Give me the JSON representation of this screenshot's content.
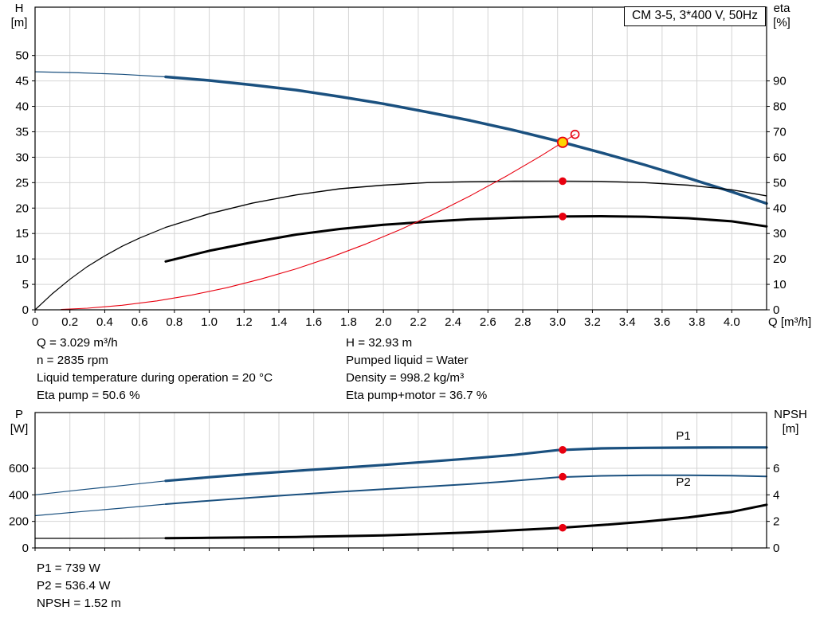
{
  "title_box": {
    "text": "CM 3-5, 3*400 V, 50Hz"
  },
  "info_top": {
    "left": [
      "Q = 3.029 m³/h",
      "n = 2835 rpm",
      "Liquid temperature during operation = 20 °C",
      "Eta pump = 50.6 %"
    ],
    "right": [
      "H = 32.93 m",
      "Pumped liquid = Water",
      "Density = 998.2 kg/m³",
      "Eta pump+motor = 36.7 %"
    ]
  },
  "info_bottom": {
    "lines": [
      "P1 = 739 W",
      "P2 = 536.4 W",
      "NPSH = 1.52 m"
    ]
  },
  "colors": {
    "curve_blue": "#1a507f",
    "curve_black": "#000000",
    "curve_red": "#e8000f",
    "duty_yellow": "#ffd500",
    "grid": "#d4d4d4",
    "frame": "#000000",
    "text": "#000000"
  },
  "chart_data": [
    {
      "type": "line",
      "title": "CM 3-5, 3*400 V, 50Hz",
      "x": {
        "label": "Q [m³/h]",
        "min": 0,
        "max": 4.2,
        "ticks": [
          0,
          0.2,
          0.4,
          0.6,
          0.8,
          1,
          1.2,
          1.4,
          1.6,
          1.8,
          2,
          2.2,
          2.4,
          2.6,
          2.8,
          3,
          3.2,
          3.4,
          3.6,
          3.8,
          4
        ],
        "tick_labels": [
          "0",
          "0.2",
          "0.4",
          "0.6",
          "0.8",
          "1.0",
          "1.2",
          "1.4",
          "1.6",
          "1.8",
          "2.0",
          "2.2",
          "2.4",
          "2.6",
          "2.8",
          "3.0",
          "3.2",
          "3.4",
          "3.6",
          "3.8",
          "4.0"
        ]
      },
      "y_left": {
        "label_lines": [
          "H",
          "[m]"
        ],
        "min": 0,
        "max": 59.5,
        "ticks": [
          0,
          5,
          10,
          15,
          20,
          25,
          30,
          35,
          40,
          45,
          50
        ]
      },
      "y_right": {
        "label_lines": [
          "eta",
          "[%]"
        ],
        "ticks": [
          0,
          10,
          20,
          30,
          40,
          50,
          60,
          70,
          80,
          90
        ],
        "to_left_scale": 0.5
      },
      "series": [
        {
          "name": "head-curve-lead",
          "color": "blue",
          "width": 1.2,
          "axis": "left",
          "points": [
            [
              0,
              46.8
            ],
            [
              0.25,
              46.6
            ],
            [
              0.5,
              46.3
            ],
            [
              0.75,
              45.8
            ]
          ]
        },
        {
          "name": "head-curve",
          "color": "blue",
          "width": 3.5,
          "axis": "left",
          "points": [
            [
              0.75,
              45.8
            ],
            [
              1,
              45.1
            ],
            [
              1.25,
              44.2
            ],
            [
              1.5,
              43.2
            ],
            [
              1.75,
              41.9
            ],
            [
              2,
              40.5
            ],
            [
              2.25,
              38.9
            ],
            [
              2.5,
              37.2
            ],
            [
              2.75,
              35.3
            ],
            [
              3,
              33.2
            ],
            [
              3.25,
              30.9
            ],
            [
              3.5,
              28.5
            ],
            [
              3.75,
              25.9
            ],
            [
              4,
              23.2
            ],
            [
              4.2,
              20.9
            ]
          ]
        },
        {
          "name": "eta-pump-curve-lead",
          "color": "black",
          "width": 1.2,
          "axis": "right",
          "points": [
            [
              0,
              0
            ],
            [
              0.1,
              6.4
            ],
            [
              0.2,
              12
            ],
            [
              0.3,
              17
            ],
            [
              0.4,
              21.2
            ],
            [
              0.5,
              25
            ],
            [
              0.6,
              28.2
            ],
            [
              0.75,
              32.4
            ]
          ]
        },
        {
          "name": "eta-pump-curve",
          "color": "black",
          "width": 1.4,
          "axis": "right",
          "points": [
            [
              0.75,
              32.4
            ],
            [
              1,
              37.8
            ],
            [
              1.25,
              42
            ],
            [
              1.5,
              45.2
            ],
            [
              1.75,
              47.6
            ],
            [
              2,
              49
            ],
            [
              2.25,
              50
            ],
            [
              2.5,
              50.4
            ],
            [
              2.75,
              50.56
            ],
            [
              3,
              50.6
            ],
            [
              3.25,
              50.5
            ],
            [
              3.5,
              50
            ],
            [
              3.75,
              49
            ],
            [
              4,
              47.2
            ],
            [
              4.2,
              44.8
            ]
          ]
        },
        {
          "name": "eta-pump-motor-curve",
          "color": "black",
          "width": 3,
          "axis": "right",
          "points": [
            [
              0.75,
              19
            ],
            [
              1,
              23.2
            ],
            [
              1.25,
              26.6
            ],
            [
              1.5,
              29.6
            ],
            [
              1.75,
              31.8
            ],
            [
              2,
              33.4
            ],
            [
              2.25,
              34.6
            ],
            [
              2.5,
              35.6
            ],
            [
              2.75,
              36.2
            ],
            [
              3,
              36.66
            ],
            [
              3.25,
              36.8
            ],
            [
              3.5,
              36.6
            ],
            [
              3.75,
              36
            ],
            [
              4,
              34.8
            ],
            [
              4.2,
              32.8
            ]
          ]
        },
        {
          "name": "system-curve",
          "color": "red",
          "width": 1.1,
          "axis": "left",
          "points": [
            [
              0.15,
              0.08
            ],
            [
              0.3,
              0.32
            ],
            [
              0.5,
              0.9
            ],
            [
              0.7,
              1.76
            ],
            [
              0.9,
              2.91
            ],
            [
              1.1,
              4.34
            ],
            [
              1.3,
              6.07
            ],
            [
              1.5,
              8.07
            ],
            [
              1.7,
              10.37
            ],
            [
              1.9,
              12.95
            ],
            [
              2.1,
              15.82
            ],
            [
              2.3,
              18.98
            ],
            [
              2.5,
              22.43
            ],
            [
              2.7,
              26.16
            ],
            [
              2.9,
              30.18
            ],
            [
              3,
              32.3
            ],
            [
              3.1,
              34.49
            ]
          ]
        }
      ],
      "labels": [],
      "markers": [
        {
          "name": "eta-pump-duty-dot",
          "style": "dot",
          "x": 3.029,
          "y": 50.6,
          "axis": "right"
        },
        {
          "name": "eta-pump-motor-duty-dot",
          "style": "dot",
          "x": 3.029,
          "y": 36.7,
          "axis": "right"
        },
        {
          "name": "requested-duty-point",
          "style": "open",
          "x": 3.1,
          "y": 34.5,
          "axis": "left"
        },
        {
          "name": "duty-point",
          "style": "duty",
          "x": 3.029,
          "y": 32.93,
          "axis": "left"
        }
      ]
    },
    {
      "type": "line",
      "title": "",
      "x": {
        "label": "",
        "min": 0,
        "max": 4.2,
        "ticks": [
          0,
          0.2,
          0.4,
          0.6,
          0.8,
          1,
          1.2,
          1.4,
          1.6,
          1.8,
          2,
          2.2,
          2.4,
          2.6,
          2.8,
          3,
          3.2,
          3.4,
          3.6,
          3.8,
          4
        ],
        "tick_labels": []
      },
      "y_left": {
        "label_lines": [
          "P",
          "[W]"
        ],
        "min": 0,
        "max": 1020,
        "ticks": [
          0,
          200,
          400,
          600
        ]
      },
      "y_right": {
        "label_lines": [
          "NPSH",
          "[m]"
        ],
        "ticks": [
          0,
          2,
          4,
          6
        ],
        "to_left_scale": 100
      },
      "series": [
        {
          "name": "p1-curve-lead",
          "color": "blue",
          "width": 1.2,
          "axis": "left",
          "points": [
            [
              0,
              400
            ],
            [
              0.25,
              436
            ],
            [
              0.5,
              470
            ],
            [
              0.75,
              505
            ]
          ]
        },
        {
          "name": "p1-curve",
          "color": "blue",
          "width": 3.2,
          "axis": "left",
          "points": [
            [
              0.75,
              505
            ],
            [
              1,
              533
            ],
            [
              1.25,
              558
            ],
            [
              1.5,
              581
            ],
            [
              1.75,
              603
            ],
            [
              2,
              625
            ],
            [
              2.25,
              649
            ],
            [
              2.5,
              674
            ],
            [
              2.75,
              701
            ],
            [
              3,
              737
            ],
            [
              3.25,
              750
            ],
            [
              3.5,
              754
            ],
            [
              3.75,
              756
            ],
            [
              4,
              757
            ],
            [
              4.2,
              757
            ]
          ]
        },
        {
          "name": "p2-curve-lead",
          "color": "blue",
          "width": 1.2,
          "axis": "left",
          "points": [
            [
              0,
              243
            ],
            [
              0.25,
              272
            ],
            [
              0.5,
              300
            ],
            [
              0.75,
              330
            ]
          ]
        },
        {
          "name": "p2-curve",
          "color": "blue",
          "width": 2,
          "axis": "left",
          "points": [
            [
              0.75,
              330
            ],
            [
              1,
              356
            ],
            [
              1.25,
              380
            ],
            [
              1.5,
              402
            ],
            [
              1.75,
              423
            ],
            [
              2,
              443
            ],
            [
              2.25,
              462
            ],
            [
              2.5,
              481
            ],
            [
              2.75,
              505
            ],
            [
              3,
              533
            ],
            [
              3.25,
              543
            ],
            [
              3.5,
              547
            ],
            [
              3.75,
              547
            ],
            [
              4,
              544
            ],
            [
              4.2,
              539
            ]
          ]
        },
        {
          "name": "npsh-curve-lead",
          "color": "black",
          "width": 1.2,
          "axis": "right",
          "points": [
            [
              0,
              0.72
            ],
            [
              0.4,
              0.72
            ],
            [
              0.75,
              0.74
            ]
          ]
        },
        {
          "name": "npsh-curve",
          "color": "black",
          "width": 3,
          "axis": "right",
          "points": [
            [
              0.75,
              0.74
            ],
            [
              1,
              0.76
            ],
            [
              1.25,
              0.79
            ],
            [
              1.5,
              0.83
            ],
            [
              1.75,
              0.88
            ],
            [
              2,
              0.95
            ],
            [
              2.25,
              1.05
            ],
            [
              2.5,
              1.17
            ],
            [
              2.75,
              1.33
            ],
            [
              3,
              1.5
            ],
            [
              3.25,
              1.72
            ],
            [
              3.5,
              1.98
            ],
            [
              3.75,
              2.3
            ],
            [
              4,
              2.72
            ],
            [
              4.2,
              3.25
            ]
          ]
        }
      ],
      "labels": [
        {
          "text": "P1",
          "x": 3.68,
          "y": 815,
          "color": "blue"
        },
        {
          "text": "P2",
          "x": 3.68,
          "y": 468,
          "color": "blue"
        }
      ],
      "markers": [
        {
          "name": "p1-duty-dot",
          "style": "dot",
          "x": 3.029,
          "y": 739,
          "axis": "left"
        },
        {
          "name": "p2-duty-dot",
          "style": "dot",
          "x": 3.029,
          "y": 536.4,
          "axis": "left"
        },
        {
          "name": "npsh-duty-dot",
          "style": "dot",
          "x": 3.029,
          "y": 1.52,
          "axis": "right"
        }
      ]
    }
  ]
}
